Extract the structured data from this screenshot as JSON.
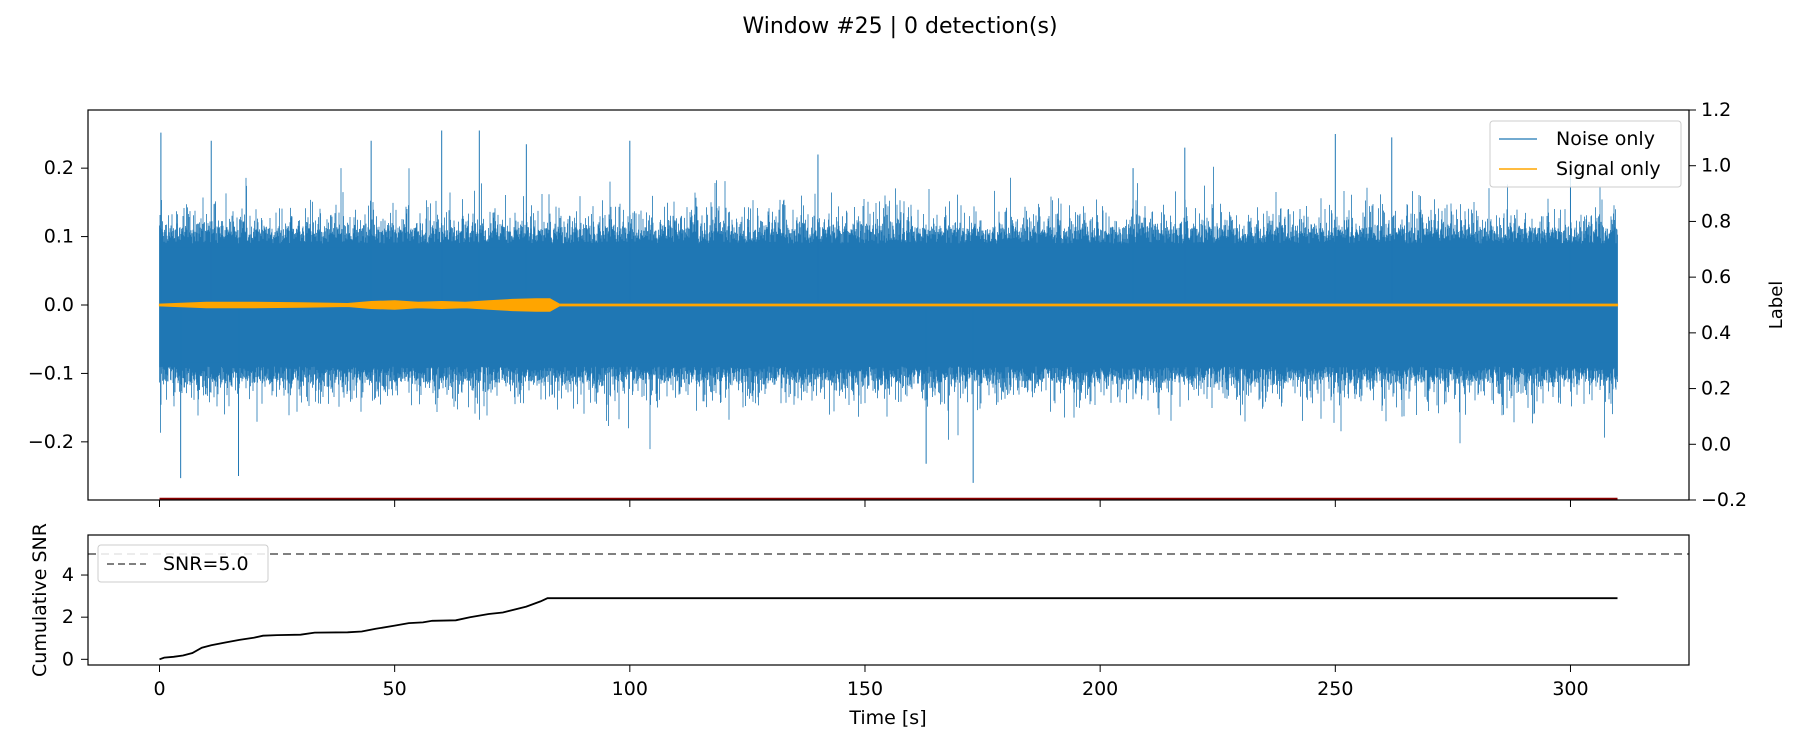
{
  "figure": {
    "title": "Window #25 | 0 detection(s)"
  },
  "chart_data": [
    {
      "type": "line",
      "panel": "waveform",
      "x_range": [
        -15.2,
        325.2
      ],
      "y_range": [
        -0.285,
        0.285
      ],
      "yticks": [
        -0.2,
        -0.1,
        0.0,
        0.1,
        0.2
      ],
      "ytick_labels": [
        "−0.2",
        "−0.1",
        "0.0",
        "0.1",
        "0.2"
      ],
      "secondary_axis": {
        "ylabel": "Label",
        "range": [
          -0.2,
          1.2
        ],
        "ticks": [
          -0.2,
          0.0,
          0.2,
          0.4,
          0.6,
          0.8,
          1.0,
          1.2
        ],
        "tick_labels": [
          "−0.2",
          "0.0",
          "0.2",
          "0.4",
          "0.6",
          "0.8",
          "1.0",
          "1.2"
        ],
        "label_series": {
          "x": [
            0,
            310
          ],
          "y": [
            -0.2,
            -0.2
          ],
          "color": "#8b0000"
        }
      },
      "series": [
        {
          "name": "Noise only",
          "color": "#1f77b4",
          "x_range": [
            0,
            310
          ],
          "typical_envelope": 0.12,
          "peaks": [
            {
              "x": 0.3,
              "y": 0.252
            },
            {
              "x": 4.5,
              "y": -0.253
            },
            {
              "x": 11.0,
              "y": 0.24
            },
            {
              "x": 16.8,
              "y": -0.25
            },
            {
              "x": 45.0,
              "y": 0.24
            },
            {
              "x": 60.0,
              "y": 0.255
            },
            {
              "x": 68.0,
              "y": 0.255
            },
            {
              "x": 78.0,
              "y": 0.235
            },
            {
              "x": 100.0,
              "y": 0.24
            },
            {
              "x": 140.0,
              "y": 0.22
            },
            {
              "x": 163.0,
              "y": -0.232
            },
            {
              "x": 173.0,
              "y": -0.26
            },
            {
              "x": 207.0,
              "y": 0.2
            },
            {
              "x": 218.0,
              "y": 0.23
            },
            {
              "x": 250.0,
              "y": 0.25
            },
            {
              "x": 262.0,
              "y": 0.245
            },
            {
              "x": 300.0,
              "y": 0.2
            }
          ]
        },
        {
          "name": "Signal only",
          "color": "#ffa500",
          "x": [
            0,
            10,
            20,
            30,
            40,
            45,
            50,
            55,
            60,
            65,
            70,
            75,
            80,
            83,
            85,
            310
          ],
          "amplitude": [
            0.001,
            0.004,
            0.004,
            0.003,
            0.002,
            0.005,
            0.006,
            0.004,
            0.005,
            0.004,
            0.006,
            0.008,
            0.009,
            0.009,
            0.001,
            0.001
          ]
        }
      ],
      "legend": {
        "placement": "upper right"
      }
    },
    {
      "type": "line",
      "panel": "cumulative-snr",
      "xlabel": "Time [s]",
      "ylabel": "Cumulative SNR",
      "x_range": [
        -15.2,
        325.2
      ],
      "y_range": [
        -0.27,
        5.9
      ],
      "xticks": [
        0,
        50,
        100,
        150,
        200,
        250,
        300
      ],
      "yticks": [
        0,
        2,
        4
      ],
      "series": [
        {
          "name": "cumulative-snr",
          "color": "#000000",
          "x": [
            0,
            1,
            3,
            5,
            7,
            9,
            11,
            14,
            17,
            20,
            22,
            25,
            30,
            33,
            40,
            43,
            46,
            50,
            53,
            56,
            58,
            63,
            66,
            70,
            73,
            78,
            81,
            82.5,
            310
          ],
          "y": [
            0.0,
            0.08,
            0.12,
            0.18,
            0.3,
            0.55,
            0.67,
            0.8,
            0.92,
            1.02,
            1.12,
            1.15,
            1.17,
            1.27,
            1.28,
            1.32,
            1.45,
            1.6,
            1.72,
            1.75,
            1.83,
            1.85,
            2.0,
            2.15,
            2.22,
            2.5,
            2.75,
            2.9,
            2.9
          ]
        },
        {
          "name": "SNR=5.0",
          "color": "#808080",
          "dashed": true,
          "y": 5.0
        }
      ],
      "legend": {
        "placement": "upper left"
      }
    }
  ]
}
